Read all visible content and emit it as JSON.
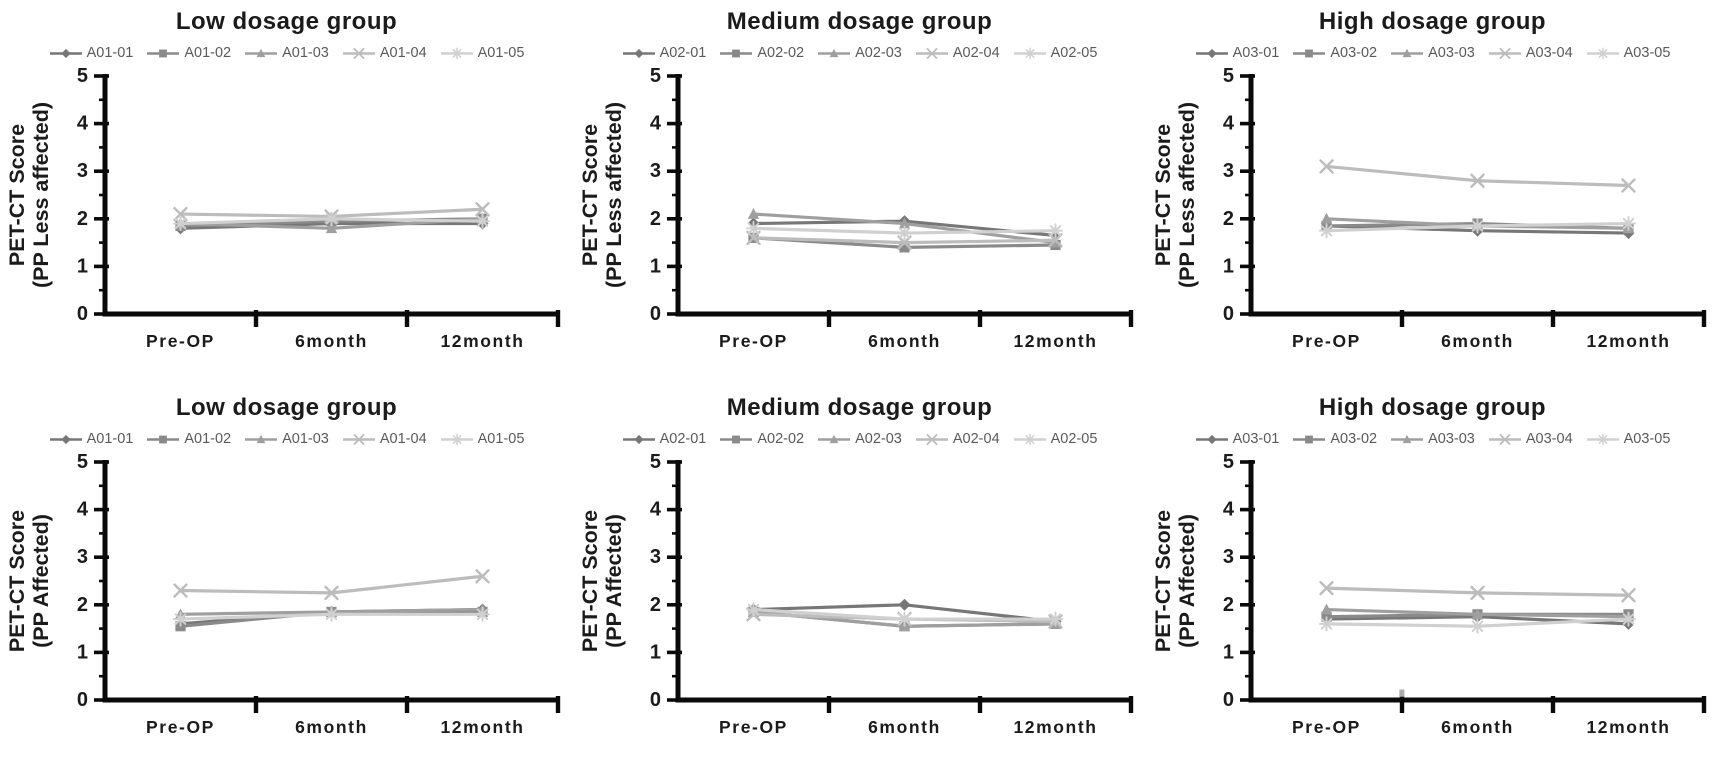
{
  "page": {
    "background": "#ffffff"
  },
  "colors": {
    "title_text": "#1b1b1b",
    "axis_text": "#1b1b1b",
    "legend_text": "#5a5a5a",
    "axis_line": "#0a0a0a",
    "series_grays": [
      "#777777",
      "#8a8a8a",
      "#9f9f9f",
      "#bcbcbc",
      "#d0d0d0"
    ]
  },
  "chart_data": [
    {
      "type": "line",
      "title": "Low dosage group",
      "ylabel": [
        "PET-CT Score",
        "(PP Less affected)"
      ],
      "categories": [
        "Pre-OP",
        "6month",
        "12month"
      ],
      "ylim": [
        0,
        5
      ],
      "ytick_step": 1,
      "yminor_step": 0.5,
      "grid": false,
      "legend_position": "top",
      "series": [
        {
          "name": "A01-01",
          "marker": "diamond",
          "color": "#777777",
          "values": [
            1.8,
            1.9,
            1.9
          ]
        },
        {
          "name": "A01-02",
          "marker": "square",
          "color": "#8a8a8a",
          "values": [
            1.85,
            1.95,
            2.0
          ]
        },
        {
          "name": "A01-03",
          "marker": "triangle",
          "color": "#9f9f9f",
          "values": [
            1.9,
            1.8,
            2.0
          ]
        },
        {
          "name": "A01-04",
          "marker": "x",
          "color": "#bcbcbc",
          "values": [
            2.1,
            2.05,
            2.2
          ]
        },
        {
          "name": "A01-05",
          "marker": "asterisk",
          "color": "#d0d0d0",
          "values": [
            1.9,
            2.0,
            1.95
          ]
        }
      ]
    },
    {
      "type": "line",
      "title": "Medium dosage group",
      "ylabel": [
        "PET-CT Score",
        "(PP Less affected)"
      ],
      "categories": [
        "Pre-OP",
        "6month",
        "12month"
      ],
      "ylim": [
        0,
        5
      ],
      "ytick_step": 1,
      "yminor_step": 0.5,
      "grid": false,
      "legend_position": "top",
      "series": [
        {
          "name": "A02-01",
          "marker": "diamond",
          "color": "#777777",
          "values": [
            1.9,
            1.95,
            1.65
          ]
        },
        {
          "name": "A02-02",
          "marker": "square",
          "color": "#8a8a8a",
          "values": [
            1.6,
            1.4,
            1.45
          ]
        },
        {
          "name": "A02-03",
          "marker": "triangle",
          "color": "#9f9f9f",
          "values": [
            2.1,
            1.9,
            1.5
          ]
        },
        {
          "name": "A02-04",
          "marker": "x",
          "color": "#bcbcbc",
          "values": [
            1.6,
            1.5,
            1.55
          ]
        },
        {
          "name": "A02-05",
          "marker": "asterisk",
          "color": "#d0d0d0",
          "values": [
            1.8,
            1.7,
            1.75
          ]
        }
      ]
    },
    {
      "type": "line",
      "title": "High dosage group",
      "ylabel": [
        "PET-CT Score",
        "(PP Less affected)"
      ],
      "categories": [
        "Pre-OP",
        "6month",
        "12month"
      ],
      "ylim": [
        0,
        5
      ],
      "ytick_step": 1,
      "yminor_step": 0.5,
      "grid": false,
      "legend_position": "top",
      "series": [
        {
          "name": "A03-01",
          "marker": "diamond",
          "color": "#777777",
          "values": [
            1.85,
            1.75,
            1.7
          ]
        },
        {
          "name": "A03-02",
          "marker": "square",
          "color": "#8a8a8a",
          "values": [
            1.85,
            1.9,
            1.8
          ]
        },
        {
          "name": "A03-03",
          "marker": "triangle",
          "color": "#9f9f9f",
          "values": [
            2.0,
            1.85,
            1.8
          ]
        },
        {
          "name": "A03-04",
          "marker": "x",
          "color": "#bcbcbc",
          "values": [
            3.1,
            2.8,
            2.7
          ]
        },
        {
          "name": "A03-05",
          "marker": "asterisk",
          "color": "#d0d0d0",
          "values": [
            1.75,
            1.85,
            1.9
          ]
        }
      ]
    },
    {
      "type": "line",
      "title": "Low dosage group",
      "ylabel": [
        "PET-CT Score",
        "(PP Affected)"
      ],
      "categories": [
        "Pre-OP",
        "6month",
        "12month"
      ],
      "ylim": [
        0,
        5
      ],
      "ytick_step": 1,
      "yminor_step": 0.5,
      "grid": false,
      "legend_position": "top",
      "series": [
        {
          "name": "A01-01",
          "marker": "diamond",
          "color": "#777777",
          "values": [
            1.6,
            1.85,
            1.9
          ]
        },
        {
          "name": "A01-02",
          "marker": "square",
          "color": "#8a8a8a",
          "values": [
            1.55,
            1.85,
            1.85
          ]
        },
        {
          "name": "A01-03",
          "marker": "triangle",
          "color": "#9f9f9f",
          "values": [
            1.8,
            1.85,
            1.9
          ]
        },
        {
          "name": "A01-04",
          "marker": "x",
          "color": "#bcbcbc",
          "values": [
            2.3,
            2.25,
            2.6
          ]
        },
        {
          "name": "A01-05",
          "marker": "asterisk",
          "color": "#d0d0d0",
          "values": [
            1.7,
            1.8,
            1.8
          ]
        }
      ]
    },
    {
      "type": "line",
      "title": "Medium dosage group",
      "ylabel": [
        "PET-CT Score",
        "(PP Affected)"
      ],
      "categories": [
        "Pre-OP",
        "6month",
        "12month"
      ],
      "ylim": [
        0,
        5
      ],
      "ytick_step": 1,
      "yminor_step": 0.5,
      "grid": false,
      "legend_position": "top",
      "series": [
        {
          "name": "A02-01",
          "marker": "diamond",
          "color": "#777777",
          "values": [
            1.9,
            2.0,
            1.65
          ]
        },
        {
          "name": "A02-02",
          "marker": "square",
          "color": "#8a8a8a",
          "values": [
            1.85,
            1.55,
            1.6
          ]
        },
        {
          "name": "A02-03",
          "marker": "triangle",
          "color": "#9f9f9f",
          "values": [
            1.85,
            1.55,
            1.6
          ]
        },
        {
          "name": "A02-04",
          "marker": "x",
          "color": "#bcbcbc",
          "values": [
            1.8,
            1.7,
            1.65
          ]
        },
        {
          "name": "A02-05",
          "marker": "asterisk",
          "color": "#d0d0d0",
          "values": [
            1.9,
            1.7,
            1.7
          ]
        }
      ]
    },
    {
      "type": "line",
      "title": "High dosage group",
      "ylabel": [
        "PET-CT Score",
        "(PP Affected)"
      ],
      "categories": [
        "Pre-OP",
        "6month",
        "12month"
      ],
      "ylim": [
        0,
        5
      ],
      "ytick_step": 1,
      "yminor_step": 0.5,
      "grid": false,
      "legend_position": "top",
      "stray_mark": {
        "axis_frac": 0.333,
        "value": 0.22,
        "color": "#9e9e9e"
      },
      "series": [
        {
          "name": "A03-01",
          "marker": "diamond",
          "color": "#777777",
          "values": [
            1.7,
            1.75,
            1.6
          ]
        },
        {
          "name": "A03-02",
          "marker": "square",
          "color": "#8a8a8a",
          "values": [
            1.75,
            1.8,
            1.8
          ]
        },
        {
          "name": "A03-03",
          "marker": "triangle",
          "color": "#9f9f9f",
          "values": [
            1.9,
            1.8,
            1.75
          ]
        },
        {
          "name": "A03-04",
          "marker": "x",
          "color": "#bcbcbc",
          "values": [
            2.35,
            2.25,
            2.2
          ]
        },
        {
          "name": "A03-05",
          "marker": "asterisk",
          "color": "#d0d0d0",
          "values": [
            1.6,
            1.55,
            1.7
          ]
        }
      ]
    }
  ]
}
